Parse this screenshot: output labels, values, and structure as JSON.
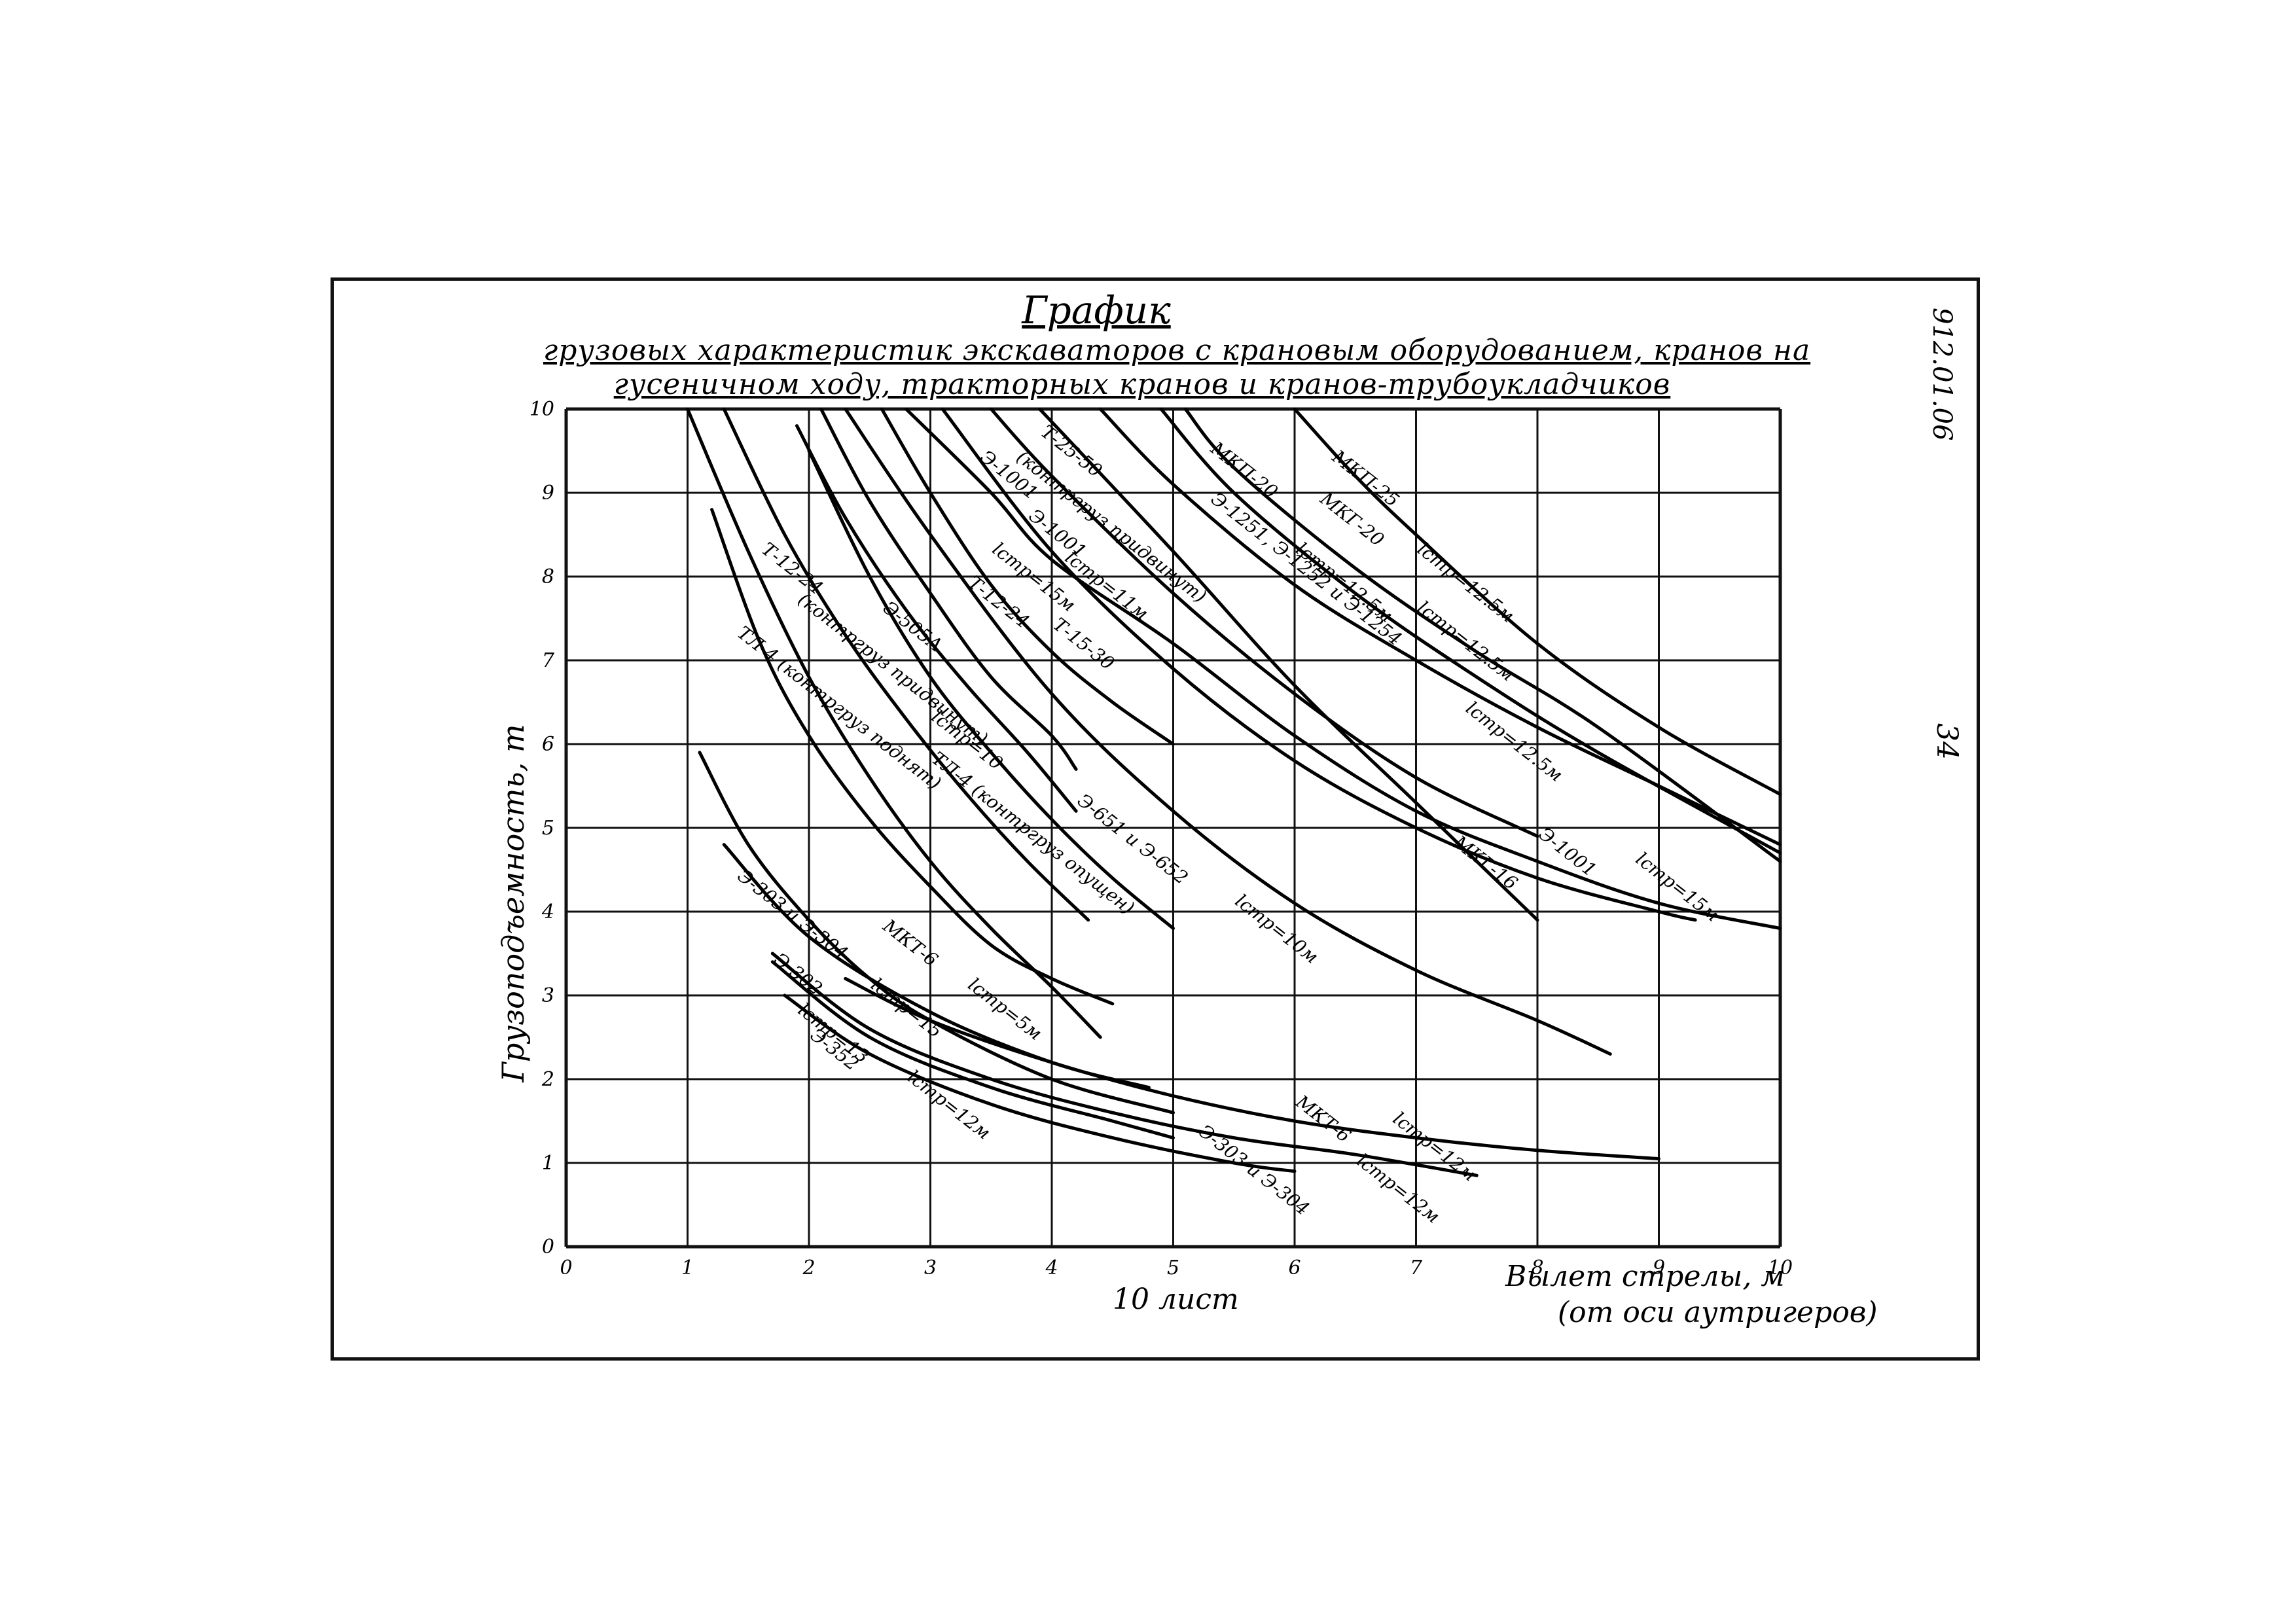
{
  "document": {
    "title": "График",
    "subtitle_line1": "грузовых характеристик экскаваторов с крановым оборудованием, кранов на",
    "subtitle_line2": "гусеничном ходу, тракторных кранов и кранов-трубоукладчиков",
    "code": "912.01.06",
    "page_number": "34",
    "sheet_label": "10 лист"
  },
  "chart_data": {
    "type": "line",
    "xlabel": "Вылет стрелы, м",
    "xlabel_note": "(от оси аутригеров)",
    "ylabel": "Грузоподъемность, т",
    "xlim": [
      0,
      10
    ],
    "ylim": [
      0,
      10
    ],
    "xticks": [
      0,
      1,
      2,
      3,
      4,
      5,
      6,
      7,
      8,
      9,
      10
    ],
    "yticks": [
      0,
      1,
      2,
      3,
      4,
      5,
      6,
      7,
      8,
      9,
      10
    ],
    "grid": true,
    "series": [
      {
        "name": "Т-12-24",
        "x": [
          1.0,
          1.5,
          2.0,
          2.5,
          3.0,
          3.5,
          4.0,
          4.4
        ],
        "y": [
          10.0,
          8.3,
          6.8,
          5.6,
          4.6,
          3.8,
          3.1,
          2.5
        ]
      },
      {
        "name": "ТЛ-4 (контргруз поднят)",
        "x": [
          1.2,
          1.6,
          2.0,
          2.5,
          3.0,
          3.5,
          4.0,
          4.5
        ],
        "y": [
          8.8,
          7.2,
          6.1,
          5.1,
          4.3,
          3.6,
          3.2,
          2.9
        ]
      },
      {
        "name": "Т-12-24 (контргруз поднят)",
        "x": [
          1.3,
          1.8,
          2.3,
          2.8,
          3.3,
          3.8,
          4.3
        ],
        "y": [
          10.0,
          8.5,
          7.3,
          6.3,
          5.4,
          4.6,
          3.9
        ]
      },
      {
        "name": "Э-505А lстр=10",
        "x": [
          1.9,
          2.3,
          2.8,
          3.3,
          3.8,
          4.2
        ],
        "y": [
          9.8,
          8.7,
          7.6,
          6.7,
          5.9,
          5.2
        ]
      },
      {
        "name": "ТЛ-4 (контргруз опущен)",
        "x": [
          2.0,
          2.5,
          3.0,
          3.5,
          4.0,
          4.5,
          5.0
        ],
        "y": [
          9.5,
          8.0,
          6.8,
          5.9,
          5.1,
          4.4,
          3.8
        ]
      },
      {
        "name": "Т-12-24 ",
        "x": [
          2.1,
          2.5,
          3.0,
          3.5,
          4.0,
          4.2
        ],
        "y": [
          10.0,
          8.9,
          7.8,
          6.8,
          6.1,
          5.7
        ]
      },
      {
        "name": "Э-651 и Э-652 lстр=10м",
        "x": [
          2.3,
          3.0,
          4.0,
          5.0,
          6.0,
          7.0,
          8.0,
          8.6
        ],
        "y": [
          10.0,
          8.5,
          6.6,
          5.2,
          4.1,
          3.3,
          2.7,
          2.3
        ]
      },
      {
        "name": "Т-15-30",
        "x": [
          2.6,
          3.0,
          3.5,
          4.0,
          4.5,
          5.0
        ],
        "y": [
          10.0,
          9.0,
          7.9,
          7.1,
          6.5,
          6.0
        ]
      },
      {
        "name": "Э-1001 lстр=11м",
        "x": [
          3.1,
          4.0,
          5.0,
          6.0,
          7.0,
          8.0,
          9.0,
          9.3
        ],
        "y": [
          10.0,
          8.3,
          6.9,
          5.8,
          5.0,
          4.4,
          4.0,
          3.9
        ]
      },
      {
        "name": "Э-1001 lстр=15м",
        "x": [
          2.8,
          3.5,
          4.0,
          5.0,
          6.0,
          7.0,
          8.0,
          9.0,
          10.0
        ],
        "y": [
          10.0,
          9.0,
          8.2,
          7.2,
          6.1,
          5.2,
          4.6,
          4.1,
          3.8
        ]
      },
      {
        "name": "Т-25-50 (контргруз придвинут)",
        "x": [
          3.5,
          4.0,
          5.0,
          6.0,
          7.0,
          8.0
        ],
        "y": [
          10.0,
          9.2,
          7.8,
          6.6,
          5.6,
          4.9
        ]
      },
      {
        "name": "МКГ-16",
        "x": [
          3.9,
          5.0,
          6.0,
          7.0,
          8.0
        ],
        "y": [
          10.0,
          8.3,
          6.7,
          5.3,
          3.9
        ]
      },
      {
        "name": "Э-1251, Э-1252 и Э-1254 lстр=12.5м",
        "x": [
          4.4,
          5.0,
          6.0,
          7.0,
          8.0,
          9.0,
          10.0
        ],
        "y": [
          10.0,
          9.1,
          7.9,
          7.0,
          6.2,
          5.5,
          4.8
        ]
      },
      {
        "name": "МКП-20",
        "x": [
          4.9,
          5.5,
          6.5,
          7.5,
          8.5,
          10.0
        ],
        "y": [
          10.0,
          9.0,
          7.8,
          6.8,
          5.9,
          4.7
        ]
      },
      {
        "name": "МКГ-20 lстр=12.5м",
        "x": [
          5.1,
          5.5,
          6.5,
          7.5,
          8.5,
          10.0
        ],
        "y": [
          10.0,
          9.3,
          8.1,
          7.1,
          6.2,
          4.6
        ]
      },
      {
        "name": "МКП-25 lстр=12.5м",
        "x": [
          6.0,
          6.5,
          7.0,
          8.0,
          9.0,
          10.0
        ],
        "y": [
          10.0,
          9.2,
          8.5,
          7.2,
          6.2,
          5.4
        ]
      },
      {
        "name": "Э-303 и Э-304",
        "x": [
          1.1,
          1.5,
          2.0,
          2.5,
          3.0,
          4.0,
          5.0
        ],
        "y": [
          5.9,
          4.8,
          3.9,
          3.2,
          2.7,
          2.0,
          1.6
        ]
      },
      {
        "name": "МКТ-6 lстр=5м",
        "x": [
          1.3,
          2.0,
          3.0,
          4.0,
          4.8
        ],
        "y": [
          4.8,
          3.7,
          2.8,
          2.2,
          1.9
        ]
      },
      {
        "name": "МКТ-6 lстр=12м",
        "x": [
          2.3,
          3.0,
          4.0,
          5.0,
          6.0,
          7.0,
          8.0,
          9.0
        ],
        "y": [
          3.2,
          2.7,
          2.2,
          1.8,
          1.5,
          1.3,
          1.15,
          1.05
        ]
      },
      {
        "name": "Э-303 и Э-304 lстр=12м",
        "x": [
          1.7,
          2.5,
          3.5,
          4.5,
          5.5,
          6.5,
          7.5
        ],
        "y": [
          3.5,
          2.6,
          2.0,
          1.6,
          1.3,
          1.1,
          0.85
        ]
      },
      {
        "name": "Э-302 lстр=13",
        "x": [
          1.7,
          2.5,
          3.5,
          4.5,
          5.0
        ],
        "y": [
          3.4,
          2.5,
          1.9,
          1.5,
          1.3
        ]
      },
      {
        "name": "Э-352 lстр=12м",
        "x": [
          1.8,
          2.5,
          3.5,
          4.5,
          5.5,
          6.0
        ],
        "y": [
          3.0,
          2.3,
          1.7,
          1.3,
          1.0,
          0.9
        ]
      }
    ],
    "labels": [
      {
        "text": "МКП-25",
        "x": 6.3,
        "y": 9.4
      },
      {
        "text": "lстр=12.5м",
        "x": 7.0,
        "y": 8.3
      },
      {
        "text": "МКГ-20",
        "x": 6.2,
        "y": 8.9
      },
      {
        "text": "lстр=12.5м",
        "x": 7.0,
        "y": 7.6
      },
      {
        "text": "МКП-20",
        "x": 5.3,
        "y": 9.5
      },
      {
        "text": "lстр=12.5м",
        "x": 6.0,
        "y": 8.3
      },
      {
        "text": "Э-1251, Э-1252 и Э-1254",
        "x": 5.3,
        "y": 8.9
      },
      {
        "text": "lстр=12.5м",
        "x": 7.4,
        "y": 6.4
      },
      {
        "text": "Т-25-50",
        "x": 3.9,
        "y": 9.7
      },
      {
        "text": "(контргруз придвинут)",
        "x": 3.7,
        "y": 9.4
      },
      {
        "text": "Э-1001",
        "x": 3.4,
        "y": 9.4
      },
      {
        "text": "Э-1001",
        "x": 3.8,
        "y": 8.7
      },
      {
        "text": "lстр=11м",
        "x": 4.1,
        "y": 8.2
      },
      {
        "text": "lстр=15м",
        "x": 3.5,
        "y": 8.3
      },
      {
        "text": "Т-15-30",
        "x": 4.0,
        "y": 7.4
      },
      {
        "text": "МКГ-16",
        "x": 7.3,
        "y": 4.8
      },
      {
        "text": "Э-1001",
        "x": 8.0,
        "y": 4.9
      },
      {
        "text": "lстр=15м",
        "x": 8.8,
        "y": 4.6
      },
      {
        "text": "Т-12-24",
        "x": 1.6,
        "y": 8.3
      },
      {
        "text": "(контргруз придвинут)",
        "x": 1.9,
        "y": 7.7
      },
      {
        "text": "ТЛ-4 (контргруз поднят)",
        "x": 1.4,
        "y": 7.3
      },
      {
        "text": "Э-505А",
        "x": 2.6,
        "y": 7.6
      },
      {
        "text": "lстр=10",
        "x": 3.0,
        "y": 6.3
      },
      {
        "text": "Т-12-24",
        "x": 3.3,
        "y": 7.9
      },
      {
        "text": "ТЛ-4 (контргруз опущен)",
        "x": 3.0,
        "y": 5.8
      },
      {
        "text": "Э-651 и Э-652",
        "x": 4.2,
        "y": 5.3
      },
      {
        "text": "lстр=10м",
        "x": 5.5,
        "y": 4.1
      },
      {
        "text": "Э-303 и Э-304",
        "x": 1.4,
        "y": 4.4
      },
      {
        "text": "МКТ-6",
        "x": 2.6,
        "y": 3.8
      },
      {
        "text": "lстр=5м",
        "x": 3.3,
        "y": 3.1
      },
      {
        "text": "lстр=15",
        "x": 2.5,
        "y": 3.1
      },
      {
        "text": "Э-302",
        "x": 1.7,
        "y": 3.4
      },
      {
        "text": "lстр=13",
        "x": 1.9,
        "y": 2.8
      },
      {
        "text": "Э-352",
        "x": 2.0,
        "y": 2.5
      },
      {
        "text": "lстр=12м",
        "x": 2.8,
        "y": 2.0
      },
      {
        "text": "МКТ-6",
        "x": 6.0,
        "y": 1.7
      },
      {
        "text": "lстр=12м",
        "x": 6.8,
        "y": 1.5
      },
      {
        "text": "Э-303 и Э-304",
        "x": 5.2,
        "y": 1.35
      },
      {
        "text": "lстр=12м",
        "x": 6.5,
        "y": 1.0
      }
    ]
  }
}
